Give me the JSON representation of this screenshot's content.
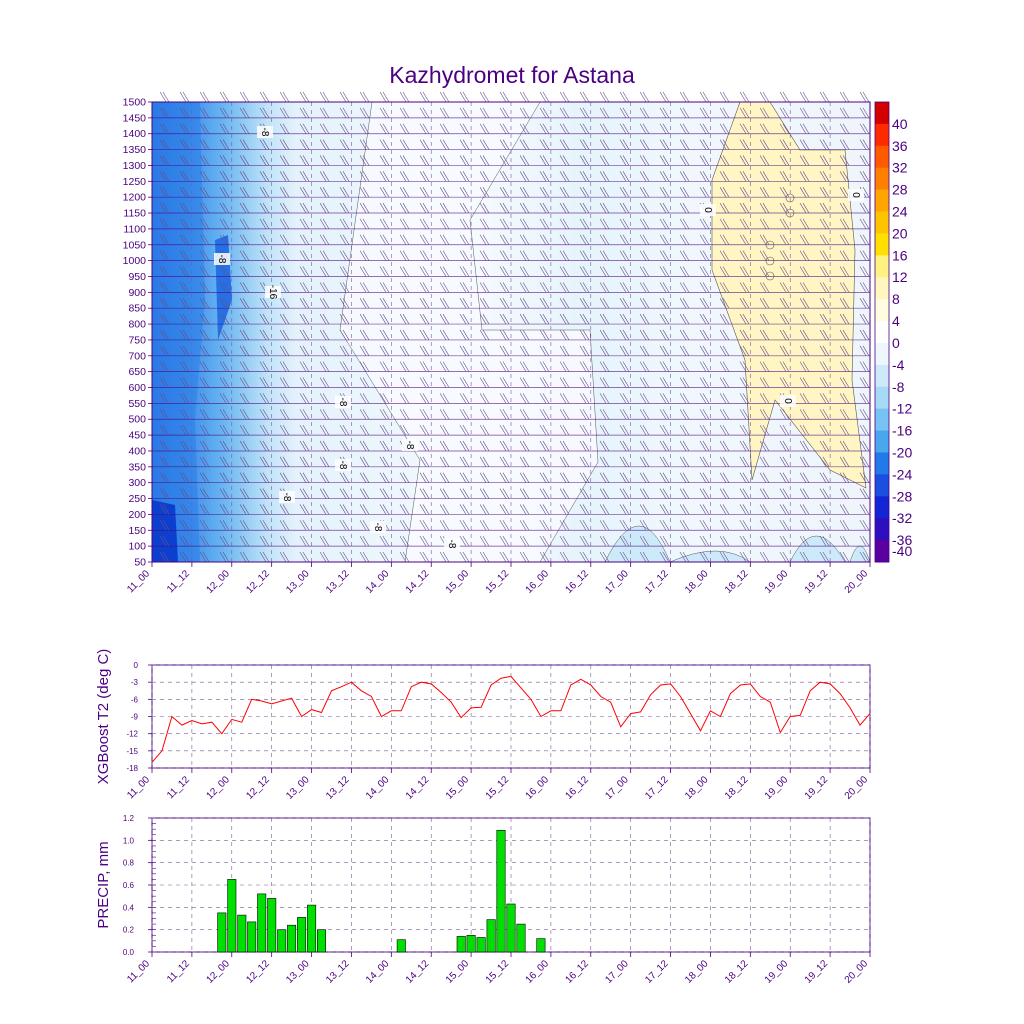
{
  "title": "Kazhydromet for Astana",
  "colors": {
    "frame": "#4b0082",
    "grid": "#7a5a9a",
    "t2_line": "#ff0000",
    "bar_fill": "#00e000",
    "contour": "#555555"
  },
  "time_labels": [
    "11_00",
    "11_12",
    "12_00",
    "12_12",
    "13_00",
    "13_12",
    "14_00",
    "14_12",
    "15_00",
    "15_12",
    "16_00",
    "16_12",
    "17_00",
    "17_12",
    "18_00",
    "18_12",
    "19_00",
    "19_12",
    "20_00"
  ],
  "chart_data": [
    {
      "type": "heatmap",
      "title": "Kazhydromet for Astana",
      "y_ticks": [
        "1500",
        "1450",
        "1400",
        "1350",
        "1300",
        "1250",
        "1200",
        "1150",
        "1100",
        "1050",
        "1000",
        "950",
        "900",
        "850",
        "800",
        "750",
        "700",
        "650",
        "600",
        "550",
        "500",
        "450",
        "400",
        "350",
        "300",
        "250",
        "200",
        "150",
        "100",
        "50"
      ],
      "ylim": [
        50,
        1500
      ],
      "colorbar": {
        "labels": [
          "40",
          "36",
          "32",
          "28",
          "24",
          "20",
          "16",
          "12",
          "8",
          "4",
          "0",
          "-4",
          "-8",
          "-12",
          "-16",
          "-20",
          "-24",
          "-28",
          "-32",
          "-36",
          "-40"
        ],
        "colors": [
          "#d40000",
          "#ff2a00",
          "#ff5a00",
          "#ff8000",
          "#ffa500",
          "#ffc400",
          "#ffe000",
          "#fff280",
          "#fff6c0",
          "#fffce0",
          "#ffffff",
          "#eef7fd",
          "#cdeafa",
          "#a6daf6",
          "#77c3f3",
          "#4aa6ef",
          "#2179ea",
          "#1a4fe0",
          "#1226d6",
          "#2d0fc0",
          "#5a00a0"
        ]
      },
      "contour_labels": [
        "-8",
        "-16",
        "-8",
        "-8",
        "-8",
        "-8",
        "-8",
        "-8",
        "-8",
        "0",
        "0",
        "0"
      ],
      "grid": true
    },
    {
      "type": "line",
      "xlabel": "",
      "ylabel": "XGBoost T2 (deg C)",
      "y_ticks": [
        "0",
        "-3",
        "-6",
        "-9",
        "-12",
        "-15",
        "-18"
      ],
      "ylim": [
        -18,
        0
      ],
      "series": [
        {
          "values": [
            -17.0,
            -15.0,
            -9.0,
            -10.5,
            -9.7,
            -10.3,
            -10.0,
            -12.0,
            -9.5,
            -10.0,
            -6.0,
            -6.3,
            -6.8,
            -6.3,
            -5.8,
            -9.0,
            -7.8,
            -8.3,
            -4.5,
            -3.8,
            -3.0,
            -4.5,
            -5.5,
            -9.0,
            -8.0,
            -8.0,
            -3.8,
            -3.0,
            -3.3,
            -4.8,
            -6.5,
            -9.2,
            -7.5,
            -7.4,
            -3.5,
            -2.3,
            -2.0,
            -4.0,
            -6.0,
            -9.0,
            -8.0,
            -8.0,
            -3.5,
            -2.5,
            -3.5,
            -5.5,
            -6.5,
            -10.8,
            -8.5,
            -8.2,
            -5.2,
            -3.5,
            -3.3,
            -5.5,
            -8.5,
            -11.5,
            -8.0,
            -9.0,
            -5.0,
            -3.5,
            -3.3,
            -5.5,
            -6.5,
            -11.8,
            -9.0,
            -8.8,
            -4.5,
            -3.0,
            -3.3,
            -5.0,
            -7.5,
            -10.5,
            -8.5
          ]
        }
      ],
      "grid": true
    },
    {
      "type": "bar",
      "xlabel": "",
      "ylabel": "PRECIP, mm",
      "y_ticks": [
        "1.2",
        "1.0",
        "0.8",
        "0.6",
        "0.4",
        "0.2",
        "0.0"
      ],
      "ylim": [
        0,
        1.2
      ],
      "values": [
        0,
        0,
        0,
        0,
        0,
        0,
        0,
        0.35,
        0.65,
        0.33,
        0.27,
        0.52,
        0.48,
        0.2,
        0.24,
        0.31,
        0.42,
        0.2,
        0,
        0,
        0,
        0,
        0,
        0,
        0,
        0.11,
        0,
        0,
        0,
        0,
        0,
        0.14,
        0.15,
        0.13,
        0.29,
        1.09,
        0.43,
        0.25,
        0,
        0.12,
        0,
        0,
        0,
        0,
        0,
        0,
        0,
        0,
        0,
        0,
        0,
        0,
        0,
        0,
        0,
        0,
        0,
        0,
        0,
        0,
        0,
        0,
        0,
        0,
        0,
        0,
        0,
        0,
        0,
        0,
        0,
        0,
        0
      ],
      "grid": true
    }
  ]
}
